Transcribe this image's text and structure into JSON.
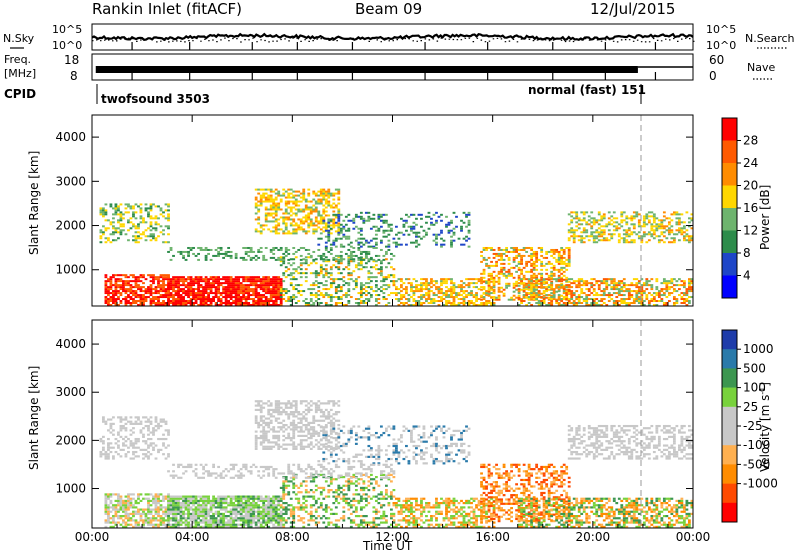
{
  "header": {
    "station": "Rankin Inlet (fitACF)",
    "beam": "Beam 09",
    "date": "12/Jul/2015"
  },
  "top_panels": {
    "nsky_label": "N.Sky",
    "nsky_ticks": [
      "10^5",
      "10^0"
    ],
    "nsearch_label": "N.Search",
    "nsearch_ticks": [
      "10^5",
      "10^0"
    ],
    "freq_label": "Freq.",
    "freq_unit": "[MHz]",
    "freq_ticks": [
      "18",
      "8"
    ],
    "nave_label": "Nave",
    "nave_ticks": [
      "60",
      "0"
    ],
    "cpid_label": "CPID",
    "cpid_modes": [
      "twofsound 3503",
      "normal (fast) 151"
    ]
  },
  "chart_data": [
    {
      "type": "heatmap",
      "title": "",
      "xlabel": "",
      "ylabel": "Slant Range [km]",
      "xlim": [
        0,
        24
      ],
      "ylim": [
        180,
        4500
      ],
      "x_ticks": [
        "00:00",
        "04:00",
        "08:00",
        "12:00",
        "16:00",
        "20:00",
        "00:00"
      ],
      "y_ticks": [
        1000,
        2000,
        3000,
        4000
      ],
      "colorbar_label": "Power [dB]",
      "colorbar_ticks": [
        "28",
        "24",
        "20",
        "16",
        "12",
        "8",
        "4"
      ],
      "colorbar_range": [
        0,
        32
      ],
      "colors": [
        "#0000ff",
        "#1e46c8",
        "#2d8c4b",
        "#6eb46e",
        "#ffd700",
        "#ff8c00",
        "#ff5a00",
        "#ff0000"
      ],
      "grid": false
    },
    {
      "type": "heatmap",
      "title": "",
      "xlabel": "Time UT",
      "ylabel": "Slant Range [km]",
      "xlim": [
        0,
        24
      ],
      "ylim": [
        180,
        4500
      ],
      "x_ticks": [
        "00:00",
        "04:00",
        "08:00",
        "12:00",
        "16:00",
        "20:00",
        "00:00"
      ],
      "y_ticks": [
        1000,
        2000,
        3000,
        4000
      ],
      "colorbar_label": "Velocity [m s^-1]",
      "colorbar_ticks": [
        "1000",
        "500",
        "100",
        "25",
        "-25",
        "-100",
        "-500",
        "-1000"
      ],
      "colors": [
        "#ff0000",
        "#ff4a00",
        "#ff8c00",
        "#ffb050",
        "#c8c8c8",
        "#c8c8c8",
        "#78d23c",
        "#3c9650",
        "#2a7aaa",
        "#1e3caa"
      ],
      "grid": false
    }
  ]
}
